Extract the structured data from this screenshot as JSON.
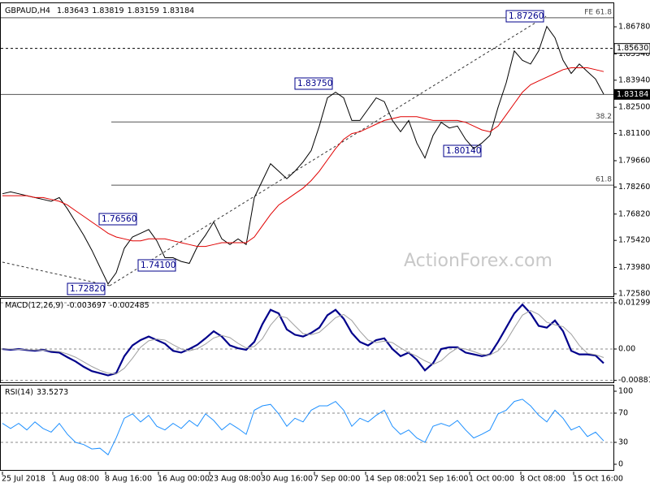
{
  "chart_data": [
    {
      "type": "line",
      "title": "GBPAUD,H4",
      "ohlc": [
        1.83643,
        1.83819,
        1.83159,
        1.83184
      ],
      "watermark": "ActionForex.com",
      "ylim": [
        1.7245,
        1.8799
      ],
      "yticks": [
        {
          "value": 1.7258,
          "label": "1.72580"
        },
        {
          "value": 1.7398,
          "label": "1.73980"
        },
        {
          "value": 1.7542,
          "label": "1.75420"
        },
        {
          "value": 1.7682,
          "label": "1.76820"
        },
        {
          "value": 1.7826,
          "label": "1.78260"
        },
        {
          "value": 1.7966,
          "label": "1.79660"
        },
        {
          "value": 1.811,
          "label": "1.81100"
        },
        {
          "value": 1.825,
          "label": "1.82500"
        },
        {
          "value": 1.8394,
          "label": "1.83940"
        },
        {
          "value": 1.8534,
          "label": "1.85340"
        },
        {
          "value": 1.8678,
          "label": "1.86780"
        }
      ],
      "series": [
        {
          "name": "GBPAUD",
          "color": "#000000",
          "values": [
            1.779,
            1.78,
            1.779,
            1.778,
            1.777,
            1.776,
            1.775,
            1.777,
            1.771,
            1.764,
            1.757,
            1.749,
            1.74,
            1.731,
            1.737,
            1.75,
            1.756,
            1.758,
            1.76,
            1.754,
            1.745,
            1.745,
            1.743,
            1.742,
            1.751,
            1.757,
            1.764,
            1.755,
            1.752,
            1.755,
            1.752,
            1.777,
            1.786,
            1.795,
            1.791,
            1.787,
            1.791,
            1.796,
            1.802,
            1.815,
            1.83,
            1.833,
            1.83,
            1.818,
            1.818,
            1.824,
            1.83,
            1.828,
            1.818,
            1.812,
            1.818,
            1.806,
            1.798,
            1.81,
            1.817,
            1.814,
            1.815,
            1.808,
            1.803,
            1.806,
            1.81,
            1.825,
            1.838,
            1.855,
            1.85,
            1.848,
            1.855,
            1.868,
            1.862,
            1.85,
            1.843,
            1.848,
            1.844,
            1.84,
            1.832
          ]
        },
        {
          "name": "MA",
          "color": "#e00000",
          "values": [
            1.778,
            1.778,
            1.778,
            1.778,
            1.777,
            1.777,
            1.776,
            1.775,
            1.773,
            1.77,
            1.767,
            1.764,
            1.761,
            1.758,
            1.756,
            1.755,
            1.754,
            1.754,
            1.755,
            1.755,
            1.755,
            1.754,
            1.753,
            1.752,
            1.751,
            1.751,
            1.752,
            1.753,
            1.753,
            1.753,
            1.753,
            1.756,
            1.762,
            1.768,
            1.773,
            1.776,
            1.779,
            1.782,
            1.786,
            1.791,
            1.797,
            1.803,
            1.808,
            1.811,
            1.812,
            1.814,
            1.816,
            1.818,
            1.819,
            1.82,
            1.82,
            1.82,
            1.819,
            1.818,
            1.818,
            1.818,
            1.818,
            1.817,
            1.815,
            1.813,
            1.812,
            1.815,
            1.821,
            1.827,
            1.833,
            1.837,
            1.839,
            1.841,
            1.843,
            1.845,
            1.846,
            1.846,
            1.846,
            1.845,
            1.844
          ]
        }
      ],
      "levels": [
        {
          "value": 1.8726,
          "label": "FE 61.8",
          "style": "solid"
        },
        {
          "value": 1.8563,
          "label": "1.85630",
          "style": "dashed"
        },
        {
          "value": 1.83184,
          "label": "1.83184",
          "style": "current"
        },
        {
          "value": 1.8172,
          "label": "38.2",
          "style": "solid"
        },
        {
          "value": 1.7836,
          "label": "61.8",
          "style": "solid"
        }
      ],
      "annotations": [
        {
          "value": 1.8726,
          "label": "1.87260"
        },
        {
          "value": 1.8375,
          "label": "1.83750"
        },
        {
          "value": 1.7656,
          "label": "1.76560"
        },
        {
          "value": 1.741,
          "label": "1.74100"
        },
        {
          "value": 1.7282,
          "label": "1.72820"
        },
        {
          "value": 1.8014,
          "label": "1.80140"
        }
      ]
    },
    {
      "type": "line",
      "title": "MACD(12,26,9)",
      "readings": [
        -0.003697,
        -0.002485
      ],
      "ylim": [
        -0.00912,
        0.01413
      ],
      "yticks": [
        -0.00881,
        {
          "value": 0,
          "label": "0.00"
        },
        0.01299
      ],
      "series": [
        {
          "name": "MACD",
          "color": "#00008b",
          "values": [
            0.0,
            -0.0002,
            0.0,
            -0.0003,
            -0.0005,
            -0.0002,
            -0.0008,
            -0.001,
            -0.0023,
            -0.0035,
            -0.005,
            -0.0062,
            -0.0068,
            -0.0074,
            -0.0068,
            -0.002,
            0.001,
            0.0025,
            0.0035,
            0.0025,
            0.0015,
            -0.0005,
            -0.001,
            0.0,
            0.0012,
            0.003,
            0.005,
            0.0035,
            0.001,
            0.0002,
            -0.0002,
            0.002,
            0.007,
            0.011,
            0.01,
            0.0055,
            0.004,
            0.0035,
            0.0045,
            0.006,
            0.0095,
            0.011,
            0.0085,
            0.0045,
            0.002,
            0.001,
            0.0025,
            0.003,
            0.0,
            -0.002,
            -0.001,
            -0.003,
            -0.006,
            -0.004,
            0.0,
            0.0005,
            0.0005,
            -0.001,
            -0.0015,
            -0.002,
            -0.0015,
            0.002,
            0.006,
            0.01,
            0.0125,
            0.01,
            0.0065,
            0.006,
            0.008,
            0.005,
            -0.0005,
            -0.0015,
            -0.0015,
            -0.0018,
            -0.004
          ]
        },
        {
          "name": "Signal",
          "color": "#a0a0a0",
          "values": [
            0.0,
            0.0,
            -0.0001,
            -0.0002,
            -0.0003,
            -0.0003,
            -0.0005,
            -0.0007,
            -0.0014,
            -0.0023,
            -0.0036,
            -0.0049,
            -0.006,
            -0.0068,
            -0.007,
            -0.0054,
            -0.0026,
            0.0005,
            0.0023,
            0.0028,
            0.0025,
            0.0012,
            0.0,
            -0.0005,
            0.0001,
            0.0014,
            0.0031,
            0.0038,
            0.0032,
            0.0016,
            0.0003,
            0.0007,
            0.0029,
            0.0067,
            0.0093,
            0.0088,
            0.0065,
            0.0043,
            0.004,
            0.0047,
            0.0067,
            0.0088,
            0.0097,
            0.008,
            0.005,
            0.0025,
            0.0018,
            0.0022,
            0.0018,
            0.0003,
            -0.001,
            -0.002,
            -0.0033,
            -0.0043,
            -0.0033,
            -0.0012,
            0.0003,
            0.0,
            -0.0007,
            -0.0015,
            -0.0017,
            -0.0005,
            0.0022,
            0.006,
            0.0095,
            0.0108,
            0.0097,
            0.0075,
            0.0068,
            0.0063,
            0.0042,
            0.001,
            -0.0012,
            -0.0016,
            -0.0024
          ]
        }
      ]
    },
    {
      "type": "line",
      "title": "RSI(14)",
      "readings": [
        33.5273
      ],
      "ylim": [
        -8.9,
        107.8
      ],
      "yticks": [
        0,
        30,
        70,
        100
      ],
      "series": [
        {
          "name": "RSI",
          "color": "#1e90ff",
          "values": [
            56,
            49,
            56,
            47,
            58,
            49,
            44,
            56,
            41,
            30,
            27,
            21,
            22,
            13,
            36,
            63,
            69,
            58,
            67,
            52,
            47,
            56,
            49,
            60,
            52,
            69,
            60,
            47,
            56,
            49,
            41,
            74,
            80,
            82,
            69,
            52,
            63,
            58,
            74,
            80,
            80,
            86,
            74,
            52,
            63,
            58,
            67,
            74,
            52,
            41,
            47,
            36,
            30,
            52,
            56,
            52,
            60,
            47,
            36,
            41,
            47,
            69,
            74,
            86,
            89,
            80,
            67,
            58,
            74,
            63,
            47,
            52,
            38,
            44,
            32
          ]
        }
      ],
      "xticks": [
        {
          "value": 0,
          "label": "25 Jul 2018"
        },
        {
          "value": 6.2,
          "label": "1 Aug 08:00"
        },
        {
          "value": 12.7,
          "label": "8 Aug 16:00"
        },
        {
          "value": 19.2,
          "label": "16 Aug 00:00"
        },
        {
          "value": 25.5,
          "label": "23 Aug 08:00"
        },
        {
          "value": 31.9,
          "label": "30 Aug 16:00"
        },
        {
          "value": 38.4,
          "label": "7 Sep 00:00"
        },
        {
          "value": 44.7,
          "label": "14 Sep 08:00"
        },
        {
          "value": 51.1,
          "label": "21 Sep 16:00"
        },
        {
          "value": 57.5,
          "label": "1 Oct 00:00"
        },
        {
          "value": 63.8,
          "label": "8 Oct 08:00"
        },
        {
          "value": 70.3,
          "label": "15 Oct 16:00"
        }
      ]
    }
  ]
}
